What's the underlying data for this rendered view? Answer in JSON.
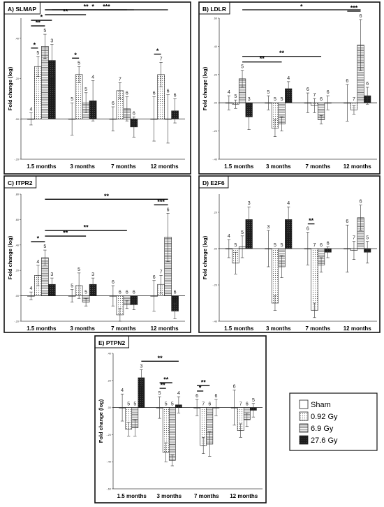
{
  "legend": {
    "entries": [
      {
        "label": "Sham",
        "pattern": "white"
      },
      {
        "label": "0.92 Gy",
        "pattern": "dots"
      },
      {
        "label": "6.9 Gy",
        "pattern": "hlines"
      },
      {
        "label": "27.6 Gy",
        "pattern": "dark"
      }
    ]
  },
  "chart_data": [
    {
      "type": "bar",
      "title": "A) SLMAP",
      "ylabel": "Fold change (log)",
      "categories": [
        "1.5 months",
        "3 months",
        "7 months",
        "12 months"
      ],
      "ylim": [
        -0.2,
        0.5
      ],
      "yticks": [
        -0.2,
        0.0,
        0.2,
        0.4
      ],
      "yticklabels": [
        "-.20",
        ".00",
        ".20",
        ".40"
      ],
      "series": [
        {
          "name": "Sham",
          "values": [
            0.0,
            0.0,
            0.0,
            0.0
          ],
          "errors": [
            0.03,
            0.08,
            0.06,
            0.11
          ],
          "n": [
            "4",
            "5",
            "6",
            "6"
          ]
        },
        {
          "name": "0.92 Gy",
          "values": [
            0.26,
            0.22,
            0.14,
            0.22
          ],
          "errors": [
            0.05,
            0.04,
            0.04,
            0.06
          ],
          "n": [
            "5",
            "5",
            "7",
            "7"
          ]
        },
        {
          "name": "6.9 Gy",
          "values": [
            0.36,
            0.08,
            0.05,
            0.0
          ],
          "errors": [
            0.06,
            0.05,
            0.06,
            0.12
          ],
          "n": [
            "5",
            "5",
            "6",
            "6"
          ]
        },
        {
          "name": "27.6 Gy",
          "values": [
            0.29,
            0.09,
            -0.04,
            0.04
          ],
          "errors": [
            0.08,
            0.1,
            0.05,
            0.06
          ],
          "n": [
            "3",
            "4",
            "6",
            "6"
          ]
        }
      ],
      "significance": [
        {
          "from": [
            0,
            0
          ],
          "to": [
            0,
            1
          ],
          "label": "*"
        },
        {
          "from": [
            0,
            0
          ],
          "to": [
            0,
            2
          ],
          "label": "**"
        },
        {
          "from": [
            0,
            0
          ],
          "to": [
            0,
            3
          ],
          "label": "*"
        },
        {
          "from": [
            0,
            2
          ],
          "to": [
            1,
            2
          ],
          "label": "**"
        },
        {
          "from": [
            0,
            2
          ],
          "to": [
            2,
            2
          ],
          "label": "**"
        },
        {
          "from": [
            0,
            2
          ],
          "to": [
            3,
            2
          ],
          "label": "***"
        },
        {
          "from": [
            0,
            3
          ],
          "to": [
            2,
            3
          ],
          "label": "*"
        },
        {
          "from": [
            1,
            0
          ],
          "to": [
            1,
            1
          ],
          "label": "*"
        },
        {
          "from": [
            3,
            0
          ],
          "to": [
            3,
            1
          ],
          "label": "*"
        }
      ]
    },
    {
      "type": "bar",
      "title": "B) LDLR",
      "ylabel": "Fold change (log)",
      "categories": [
        "1.5 months",
        "3 months",
        "7 months",
        "12 months"
      ],
      "ylim": [
        -0.4,
        0.6
      ],
      "yticks": [
        -0.4,
        -0.2,
        0.0,
        0.2,
        0.4,
        0.6
      ],
      "yticklabels": [
        "-.40",
        "-.20",
        ".00",
        ".20",
        ".40",
        ".60"
      ],
      "series": [
        {
          "name": "Sham",
          "values": [
            0.0,
            0.0,
            0.0,
            0.0
          ],
          "errors": [
            0.05,
            0.05,
            0.07,
            0.13
          ],
          "n": [
            "4",
            "5",
            "6",
            "6"
          ]
        },
        {
          "name": "0.92 Gy",
          "values": [
            -0.01,
            -0.18,
            -0.02,
            -0.05
          ],
          "errors": [
            0.03,
            0.06,
            0.05,
            0.03
          ],
          "n": [
            "5",
            "5",
            "7",
            "7"
          ]
        },
        {
          "name": "6.9 Gy",
          "values": [
            0.17,
            -0.15,
            -0.12,
            0.41
          ],
          "errors": [
            0.06,
            0.05,
            0.03,
            0.18
          ],
          "n": [
            "5",
            "5",
            "6",
            "6"
          ]
        },
        {
          "name": "27.6 Gy",
          "values": [
            -0.1,
            0.1,
            0.0,
            0.05
          ],
          "errors": [
            0.09,
            0.05,
            0.05,
            0.06
          ],
          "n": [
            "3",
            "4",
            "6",
            "6"
          ]
        }
      ],
      "significance": [
        {
          "from": [
            0,
            2
          ],
          "to": [
            1,
            2
          ],
          "label": "**"
        },
        {
          "from": [
            0,
            2
          ],
          "to": [
            2,
            2
          ],
          "label": "**"
        },
        {
          "from": [
            0,
            2
          ],
          "to": [
            3,
            2
          ],
          "label": "*"
        },
        {
          "from": [
            3,
            0
          ],
          "to": [
            3,
            2
          ],
          "label": "***"
        }
      ]
    },
    {
      "type": "bar",
      "title": "C) ITPR2",
      "ylabel": "Fold change (log)",
      "categories": [
        "1.5 months",
        "3 months",
        "7 months",
        "12 months"
      ],
      "ylim": [
        -0.2,
        0.8
      ],
      "yticks": [
        -0.2,
        0.0,
        0.2,
        0.4,
        0.6,
        0.8
      ],
      "yticklabels": [
        "-.20",
        ".00",
        ".20",
        ".40",
        ".60",
        ".80"
      ],
      "series": [
        {
          "name": "Sham",
          "values": [
            0.0,
            0.0,
            0.0,
            0.0
          ],
          "errors": [
            0.03,
            0.05,
            0.08,
            0.12
          ],
          "n": [
            "4",
            "5",
            "6",
            "6"
          ]
        },
        {
          "name": "0.92 Gy",
          "values": [
            0.16,
            0.08,
            -0.15,
            0.09
          ],
          "errors": [
            0.08,
            0.1,
            0.05,
            0.07
          ],
          "n": [
            "4",
            "5",
            "6",
            "7"
          ]
        },
        {
          "name": "6.9 Gy",
          "values": [
            0.3,
            -0.05,
            -0.07,
            0.46
          ],
          "errors": [
            0.06,
            0.03,
            0.03,
            0.19
          ],
          "n": [
            "5",
            "5",
            "6",
            "6"
          ]
        },
        {
          "name": "27.6 Gy",
          "values": [
            0.09,
            0.09,
            -0.07,
            -0.12
          ],
          "errors": [
            0.05,
            0.05,
            0.04,
            0.06
          ],
          "n": [
            "3",
            "3",
            "6",
            "6"
          ]
        }
      ],
      "significance": [
        {
          "from": [
            0,
            0
          ],
          "to": [
            0,
            2
          ],
          "label": "*"
        },
        {
          "from": [
            0,
            2
          ],
          "to": [
            1,
            2
          ],
          "label": "**"
        },
        {
          "from": [
            0,
            2
          ],
          "to": [
            2,
            2
          ],
          "label": "**"
        },
        {
          "from": [
            0,
            2
          ],
          "to": [
            3,
            2
          ],
          "label": "**"
        },
        {
          "from": [
            3,
            0
          ],
          "to": [
            3,
            2
          ],
          "label": "***"
        }
      ]
    },
    {
      "type": "bar",
      "title": "D) E2F6",
      "ylabel": "Fold change (log)",
      "categories": [
        "1.5 months",
        "3 months",
        "7 months",
        "12 months"
      ],
      "ylim": [
        -0.4,
        0.3
      ],
      "yticks": [
        -0.4,
        -0.2,
        0.0,
        0.2
      ],
      "yticklabels": [
        "-.40",
        "-.20",
        ".00",
        ".20"
      ],
      "series": [
        {
          "name": "Sham",
          "values": [
            0.0,
            0.0,
            0.0,
            0.0
          ],
          "errors": [
            0.05,
            0.1,
            0.09,
            0.13
          ],
          "n": [
            "4",
            "3",
            "6",
            "6"
          ]
        },
        {
          "name": "0.92 Gy",
          "values": [
            -0.08,
            -0.3,
            -0.34,
            -0.01
          ],
          "errors": [
            0.06,
            0.04,
            0.04,
            0.05
          ],
          "n": [
            "5",
            "5",
            "7",
            "7"
          ]
        },
        {
          "name": "6.9 Gy",
          "values": [
            0.01,
            -0.1,
            -0.09,
            0.17
          ],
          "errors": [
            0.06,
            0.06,
            0.04,
            0.07
          ],
          "n": [
            "5",
            "5",
            "6",
            "6"
          ]
        },
        {
          "name": "27.6 Gy",
          "values": [
            0.16,
            0.16,
            -0.02,
            -0.02
          ],
          "errors": [
            0.07,
            0.07,
            0.03,
            0.06
          ],
          "n": [
            "3",
            "4",
            "6",
            "5"
          ]
        }
      ],
      "significance": [
        {
          "from": [
            2,
            0
          ],
          "to": [
            2,
            1
          ],
          "label": "**"
        }
      ]
    },
    {
      "type": "bar",
      "title": "E) PTPN2",
      "ylabel": "Fold change (log)",
      "categories": [
        "1.5 months",
        "3 months",
        "7 months",
        "12 months"
      ],
      "ylim": [
        -0.6,
        0.4
      ],
      "yticks": [
        -0.6,
        -0.4,
        -0.2,
        0.0,
        0.2,
        0.4
      ],
      "yticklabels": [
        "-.60",
        "-.40",
        "-.20",
        ".00",
        ".20",
        ".40"
      ],
      "series": [
        {
          "name": "Sham",
          "values": [
            0.0,
            0.0,
            0.0,
            0.0
          ],
          "errors": [
            0.1,
            0.08,
            0.06,
            0.13
          ],
          "n": [
            "4",
            "5",
            "6",
            "6"
          ]
        },
        {
          "name": "0.92 Gy",
          "values": [
            -0.16,
            -0.33,
            -0.28,
            -0.17
          ],
          "errors": [
            0.05,
            0.07,
            0.06,
            0.05
          ],
          "n": [
            "5",
            "5",
            "7",
            "7"
          ]
        },
        {
          "name": "6.9 Gy",
          "values": [
            -0.15,
            -0.39,
            -0.27,
            -0.09
          ],
          "errors": [
            0.06,
            0.04,
            0.09,
            0.05
          ],
          "n": [
            "5",
            "5",
            "6",
            "6"
          ]
        },
        {
          "name": "27.6 Gy",
          "values": [
            0.22,
            0.02,
            0.0,
            -0.02
          ],
          "errors": [
            0.06,
            0.06,
            0.06,
            0.05
          ],
          "n": [
            "3",
            "4",
            "6",
            "5"
          ]
        }
      ],
      "significance": [
        {
          "from": [
            0,
            3
          ],
          "to": [
            1,
            3
          ],
          "label": "**"
        },
        {
          "from": [
            1,
            0
          ],
          "to": [
            1,
            1
          ],
          "label": "**"
        },
        {
          "from": [
            1,
            0
          ],
          "to": [
            1,
            2
          ],
          "label": "**"
        },
        {
          "from": [
            2,
            0
          ],
          "to": [
            2,
            1
          ],
          "label": "*"
        },
        {
          "from": [
            2,
            0
          ],
          "to": [
            2,
            2
          ],
          "label": "**"
        }
      ]
    }
  ]
}
